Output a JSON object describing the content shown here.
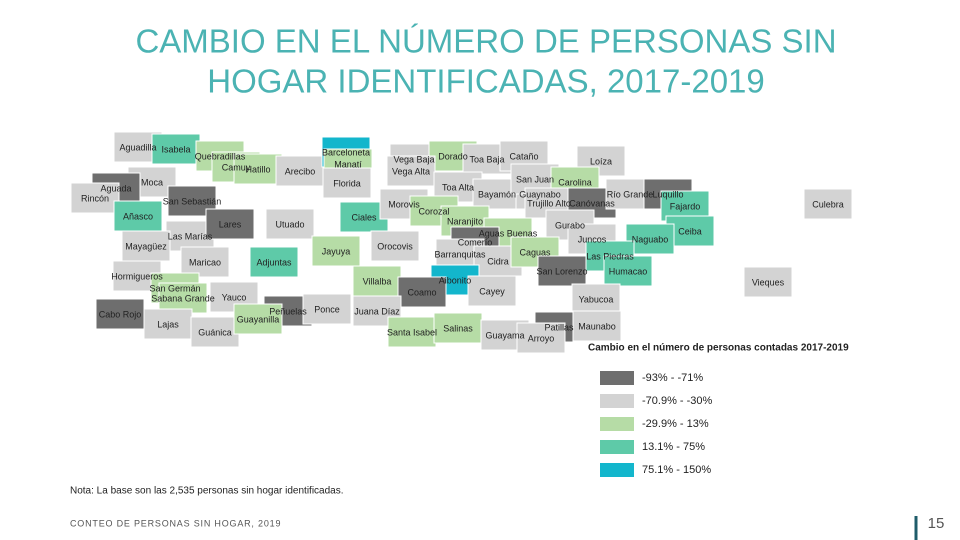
{
  "header": {
    "title_line1": "CAMBIO EN EL NÚMERO DE PERSONAS SIN",
    "title_line2": "HOGAR IDENTIFICADAS, 2017-2019"
  },
  "legend": {
    "title": "Cambio en el número de personas contadas 2017-2019",
    "items": [
      {
        "label": "-93% - -71%",
        "color": "#6e6e6e"
      },
      {
        "label": "-70.9% - -30%",
        "color": "#d3d3d3"
      },
      {
        "label": "-29.9% - 13%",
        "color": "#b6dca6"
      },
      {
        "label": "13.1% - 75%",
        "color": "#5ecaa8"
      },
      {
        "label": "75.1% - 150%",
        "color": "#13b6cc"
      }
    ]
  },
  "municipalities": [
    {
      "name": "Aguadilla",
      "color": "#d3d3d3"
    },
    {
      "name": "Isabela",
      "color": "#5ecaa8"
    },
    {
      "name": "Quebradillas",
      "color": "#b6dca6"
    },
    {
      "name": "Camuy",
      "color": "#b6dca6"
    },
    {
      "name": "Hatillo",
      "color": "#b6dca6"
    },
    {
      "name": "Arecibo",
      "color": "#d3d3d3"
    },
    {
      "name": "Barceloneta",
      "color": "#13b6cc"
    },
    {
      "name": "Manatí",
      "color": "#b6dca6"
    },
    {
      "name": "Vega Baja",
      "color": "#d3d3d3"
    },
    {
      "name": "Dorado",
      "color": "#b6dca6"
    },
    {
      "name": "Toa Baja",
      "color": "#d3d3d3"
    },
    {
      "name": "Cataño",
      "color": "#d3d3d3"
    },
    {
      "name": "Loíza",
      "color": "#d3d3d3"
    },
    {
      "name": "Vega Alta",
      "color": "#d3d3d3"
    },
    {
      "name": "Moca",
      "color": "#d3d3d3"
    },
    {
      "name": "Aguada",
      "color": "#6e6e6e"
    },
    {
      "name": "Rincón",
      "color": "#d3d3d3"
    },
    {
      "name": "San Sebastián",
      "color": "#6e6e6e"
    },
    {
      "name": "Florida",
      "color": "#d3d3d3"
    },
    {
      "name": "Ciales",
      "color": "#5ecaa8"
    },
    {
      "name": "Toa Alta",
      "color": "#d3d3d3"
    },
    {
      "name": "Bayamón",
      "color": "#d3d3d3"
    },
    {
      "name": "Guaynabo",
      "color": "#d3d3d3"
    },
    {
      "name": "San Juan",
      "color": "#d3d3d3"
    },
    {
      "name": "Carolina",
      "color": "#b6dca6"
    },
    {
      "name": "Trujillo Alto",
      "color": "#d3d3d3"
    },
    {
      "name": "Canóvanas",
      "color": "#6e6e6e"
    },
    {
      "name": "Río Grande",
      "color": "#d3d3d3"
    },
    {
      "name": "Luquillo",
      "color": "#6e6e6e"
    },
    {
      "name": "Fajardo",
      "color": "#5ecaa8"
    },
    {
      "name": "Culebra",
      "color": "#d3d3d3"
    },
    {
      "name": "Añasco",
      "color": "#5ecaa8"
    },
    {
      "name": "Las Marías",
      "color": "#d3d3d3"
    },
    {
      "name": "Lares",
      "color": "#6e6e6e"
    },
    {
      "name": "Utuado",
      "color": "#d3d3d3"
    },
    {
      "name": "Morovis",
      "color": "#d3d3d3"
    },
    {
      "name": "Corozal",
      "color": "#b6dca6"
    },
    {
      "name": "Naranjito",
      "color": "#b6dca6"
    },
    {
      "name": "Aguas Buenas",
      "color": "#b6dca6"
    },
    {
      "name": "Gurabo",
      "color": "#d3d3d3"
    },
    {
      "name": "Ceiba",
      "color": "#5ecaa8"
    },
    {
      "name": "Juncos",
      "color": "#d3d3d3"
    },
    {
      "name": "Naguabo",
      "color": "#5ecaa8"
    },
    {
      "name": "Mayagüez",
      "color": "#d3d3d3"
    },
    {
      "name": "Jayuya",
      "color": "#b6dca6"
    },
    {
      "name": "Orocovis",
      "color": "#d3d3d3"
    },
    {
      "name": "Comerío",
      "color": "#6e6e6e"
    },
    {
      "name": "Barranquitas",
      "color": "#d3d3d3"
    },
    {
      "name": "Cidra",
      "color": "#d3d3d3"
    },
    {
      "name": "Caguas",
      "color": "#b6dca6"
    },
    {
      "name": "Las Piedras",
      "color": "#5ecaa8"
    },
    {
      "name": "Maricao",
      "color": "#d3d3d3"
    },
    {
      "name": "Adjuntas",
      "color": "#5ecaa8"
    },
    {
      "name": "Hormigueros",
      "color": "#d3d3d3"
    },
    {
      "name": "San Lorenzo",
      "color": "#6e6e6e"
    },
    {
      "name": "Humacao",
      "color": "#5ecaa8"
    },
    {
      "name": "Vieques",
      "color": "#d3d3d3"
    },
    {
      "name": "Villalba",
      "color": "#b6dca6"
    },
    {
      "name": "Aibonito",
      "color": "#13b6cc"
    },
    {
      "name": "San Germán",
      "color": "#b6dca6"
    },
    {
      "name": "Coamo",
      "color": "#6e6e6e"
    },
    {
      "name": "Cayey",
      "color": "#d3d3d3"
    },
    {
      "name": "Cabo Rojo",
      "color": "#6e6e6e"
    },
    {
      "name": "Sabana Grande",
      "color": "#b6dca6"
    },
    {
      "name": "Yauco",
      "color": "#d3d3d3"
    },
    {
      "name": "Peñuelas",
      "color": "#6e6e6e"
    },
    {
      "name": "Ponce",
      "color": "#d3d3d3"
    },
    {
      "name": "Juana Díaz",
      "color": "#d3d3d3"
    },
    {
      "name": "Yabucoa",
      "color": "#d3d3d3"
    },
    {
      "name": "Lajas",
      "color": "#d3d3d3"
    },
    {
      "name": "Guánica",
      "color": "#d3d3d3"
    },
    {
      "name": "Guayanilla",
      "color": "#b6dca6"
    },
    {
      "name": "Santa Isabel",
      "color": "#b6dca6"
    },
    {
      "name": "Salinas",
      "color": "#b6dca6"
    },
    {
      "name": "Guayama",
      "color": "#d3d3d3"
    },
    {
      "name": "Patillas",
      "color": "#6e6e6e"
    },
    {
      "name": "Maunabo",
      "color": "#d3d3d3"
    },
    {
      "name": "Arroyo",
      "color": "#d3d3d3"
    }
  ],
  "note": "Nota: La base son las 2,535 personas sin hogar identificadas.",
  "footer": {
    "left": "CONTEO DE PERSONAS SIN HOGAR, 2019",
    "page": "15"
  }
}
